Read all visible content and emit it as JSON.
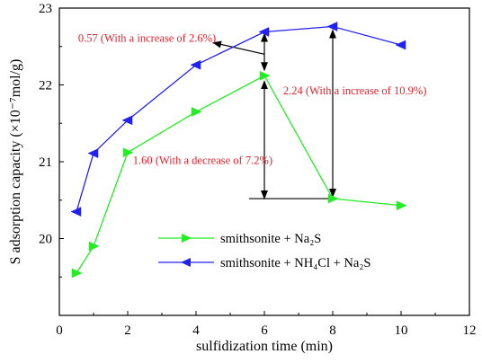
{
  "chart_data": {
    "type": "line",
    "xlabel": "sulfidization time (min)",
    "ylabel": "S adsorption capacity (×10⁻⁷mol/g)",
    "xlim": [
      0,
      12
    ],
    "ylim": [
      19,
      23
    ],
    "xticks": [
      0,
      2,
      4,
      6,
      8,
      10,
      12
    ],
    "yticks": [
      20,
      21,
      22,
      23
    ],
    "grid": false,
    "legend_position": "bottom-center",
    "series": [
      {
        "name": "smithsonite + Na₂S",
        "color": "#22ee22",
        "marker": "triangle-right",
        "x": [
          0.5,
          1,
          2,
          4,
          6,
          8,
          10
        ],
        "y": [
          19.55,
          19.9,
          21.12,
          21.65,
          22.12,
          20.52,
          20.43
        ]
      },
      {
        "name": "smithsonite + NH₄Cl + Na₂S",
        "color": "#2222ee",
        "marker": "triangle-left",
        "x": [
          0.5,
          1,
          2,
          4,
          6,
          8,
          10
        ],
        "y": [
          20.35,
          21.11,
          21.54,
          22.26,
          22.69,
          22.76,
          22.52
        ]
      }
    ],
    "annotations": [
      {
        "text": "0.57 (With a increase of 2.6%)",
        "color": "#e8202a"
      },
      {
        "text": "2.24 (With a increase of 10.9%)",
        "color": "#e8202a"
      },
      {
        "text": "1.60 (With a decrease of 7.2%)",
        "color": "#e8202a"
      }
    ]
  }
}
